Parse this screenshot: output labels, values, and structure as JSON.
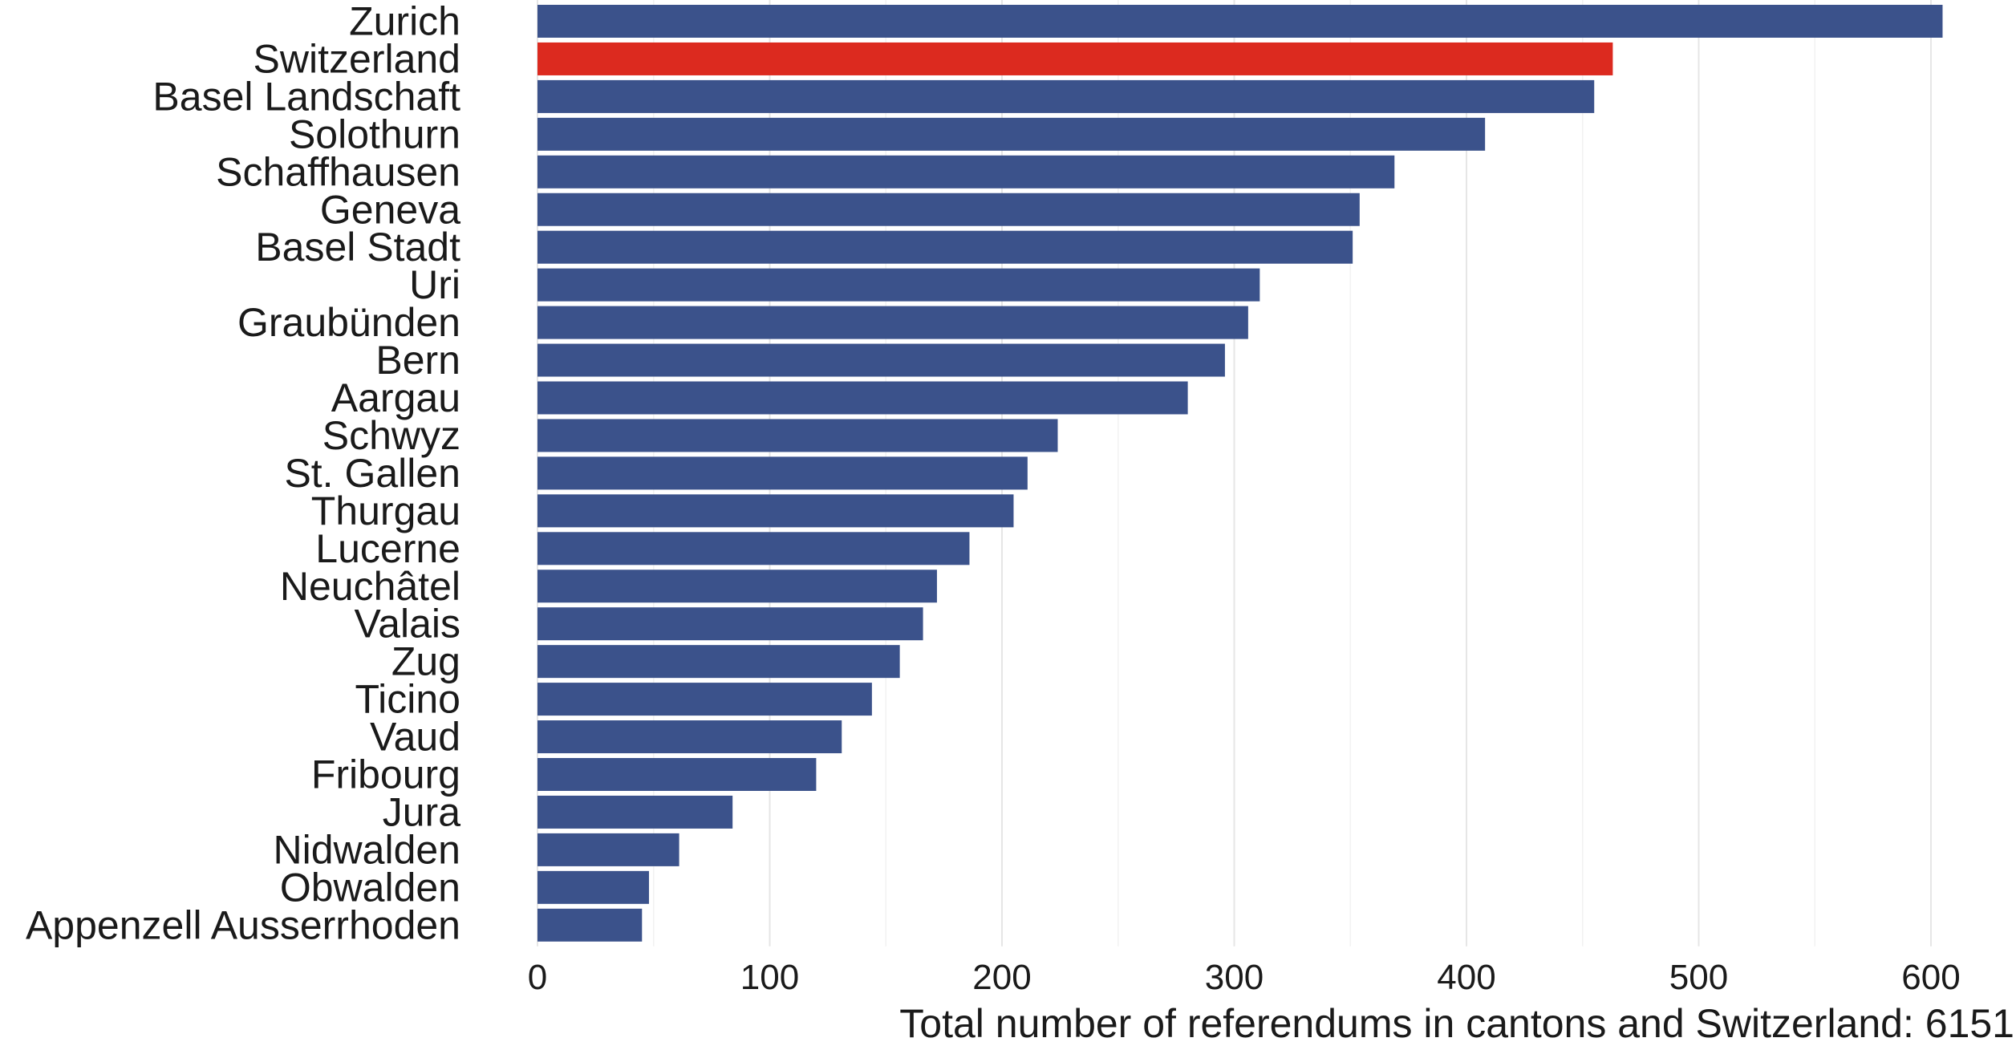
{
  "chart_data": {
    "type": "bar",
    "orientation": "horizontal",
    "categories": [
      "Zurich",
      "Switzerland",
      "Basel Landschaft",
      "Solothurn",
      "Schaffhausen",
      "Geneva",
      "Basel Stadt",
      "Uri",
      "Graubünden",
      "Bern",
      "Aargau",
      "Schwyz",
      "St. Gallen",
      "Thurgau",
      "Lucerne",
      "Neuchâtel",
      "Valais",
      "Zug",
      "Ticino",
      "Vaud",
      "Fribourg",
      "Jura",
      "Nidwalden",
      "Obwalden",
      "Appenzell Ausserrhoden"
    ],
    "values": [
      605,
      463,
      455,
      408,
      369,
      354,
      351,
      311,
      306,
      296,
      280,
      224,
      211,
      205,
      186,
      172,
      166,
      156,
      144,
      131,
      120,
      84,
      61,
      48,
      45
    ],
    "highlight": "Switzerland",
    "colors": {
      "bar": "#3b528b",
      "highlight": "#dc2a1f"
    },
    "xlabel": "Total number of referendums in cantons and Switzerland: 6151",
    "ylabel": "",
    "title": "",
    "xlim": [
      0,
      620
    ],
    "xticks": [
      0,
      100,
      200,
      300,
      400,
      500,
      600
    ],
    "grid": true,
    "legend": "none"
  }
}
